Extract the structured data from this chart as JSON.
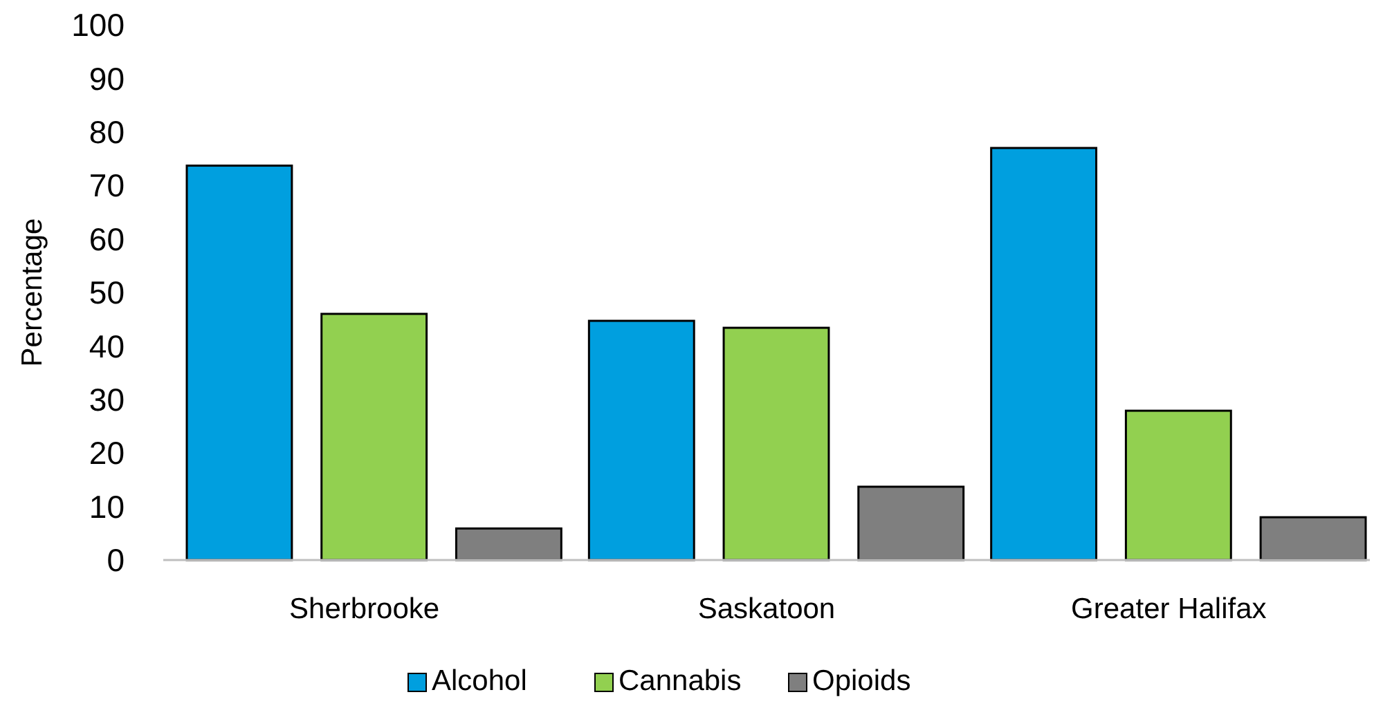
{
  "chart_data": {
    "type": "bar",
    "ylabel": "Percentage",
    "categories": [
      "Sherbrooke",
      "Saskatoon",
      "Greater Halifax"
    ],
    "series": [
      {
        "name": "Alcohol",
        "color": "#009fdf",
        "values": [
          73.7,
          44.7,
          77.0
        ]
      },
      {
        "name": "Cannabis",
        "color": "#92d050",
        "values": [
          46.0,
          43.4,
          27.9
        ]
      },
      {
        "name": "Opioids",
        "color": "#7f7f7f",
        "values": [
          5.9,
          13.7,
          8.0
        ]
      }
    ],
    "ylim": [
      0,
      100
    ],
    "yticks": [
      0,
      10,
      20,
      30,
      40,
      50,
      60,
      70,
      80,
      90,
      100
    ],
    "grid": false,
    "legend": "bottom"
  }
}
